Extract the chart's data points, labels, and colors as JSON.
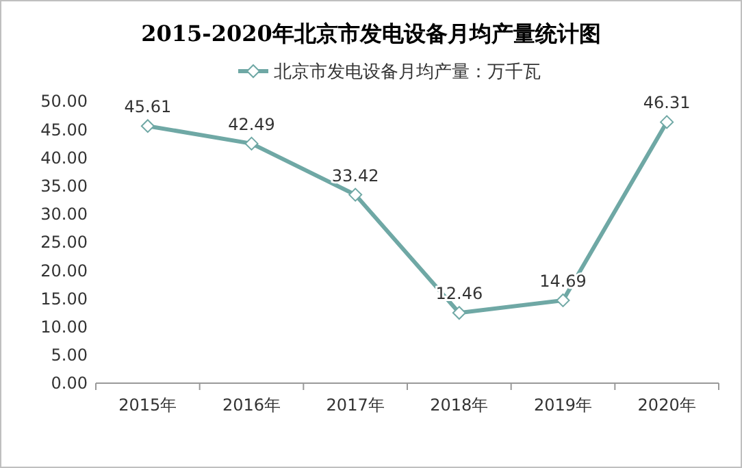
{
  "chart_data": {
    "type": "line",
    "title": "2015-2020年北京市发电设备月均产量统计图",
    "categories": [
      "2015年",
      "2016年",
      "2017年",
      "2018年",
      "2019年",
      "2020年"
    ],
    "series": [
      {
        "name": "北京市发电设备月均产量：万千瓦",
        "color": "#6fa8a5",
        "values": [
          45.61,
          42.49,
          33.42,
          12.46,
          14.69,
          46.31
        ]
      }
    ],
    "ylim": [
      0,
      50
    ],
    "yticks": [
      {
        "value": 0,
        "label": "0.00"
      },
      {
        "value": 5,
        "label": "5.00"
      },
      {
        "value": 10,
        "label": "10.00"
      },
      {
        "value": 15,
        "label": "15.00"
      },
      {
        "value": 20,
        "label": "20.00"
      },
      {
        "value": 25,
        "label": "25.00"
      },
      {
        "value": 30,
        "label": "30.00"
      },
      {
        "value": 35,
        "label": "35.00"
      },
      {
        "value": 40,
        "label": "40.00"
      },
      {
        "value": 45,
        "label": "45.00"
      },
      {
        "value": 50,
        "label": "50.00"
      }
    ],
    "grid": false,
    "legend": "top",
    "marker": "diamond",
    "line_style": "solid",
    "data_labels": true
  }
}
